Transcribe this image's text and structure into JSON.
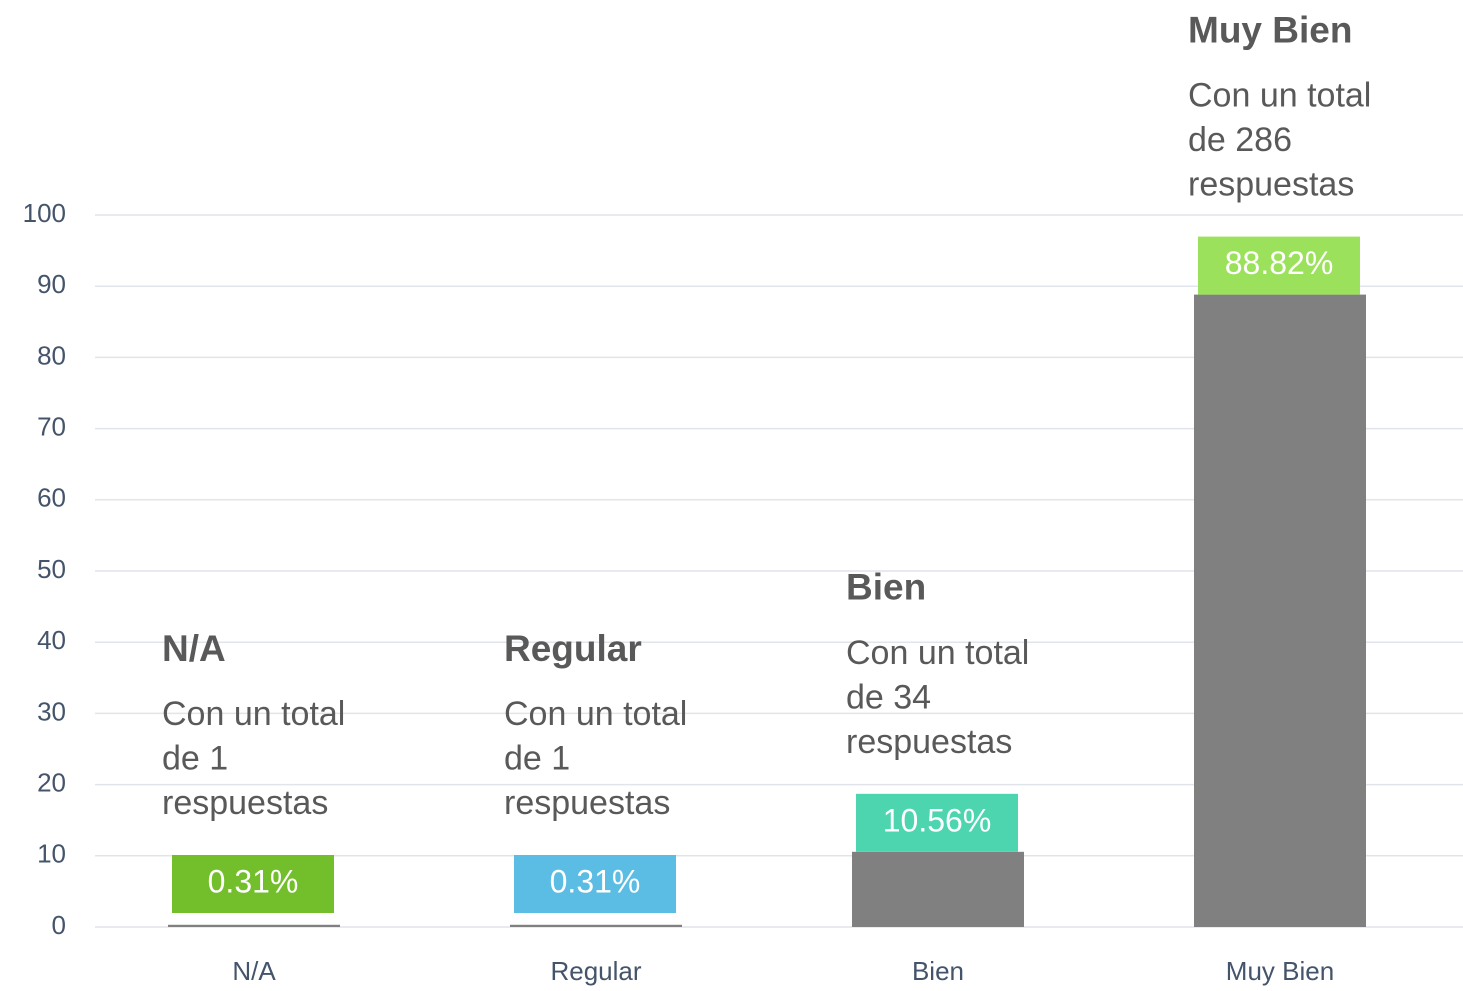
{
  "chart_data": {
    "type": "bar",
    "categories": [
      "N/A",
      "Regular",
      "Bien",
      "Muy Bien"
    ],
    "values": [
      0.31,
      0.31,
      10.56,
      88.82
    ],
    "value_labels": [
      "0.31%",
      "0.31%",
      "10.56%",
      "88.82%"
    ],
    "color": "#808080",
    "label_colors": [
      "#72bf2b",
      "#5bbde3",
      "#4dd5b0",
      "#9ce15b"
    ],
    "annotations": [
      {
        "title": "N/A",
        "lines": [
          "Con un total",
          "de 1",
          "respuestas"
        ]
      },
      {
        "title": "Regular",
        "lines": [
          "Con un total",
          "de 1",
          "respuestas"
        ]
      },
      {
        "title": "Bien",
        "lines": [
          "Con un total",
          "de 34",
          "respuestas"
        ]
      },
      {
        "title": "Muy Bien",
        "lines": [
          "Con un total",
          "de 286",
          "respuestas"
        ]
      }
    ],
    "ylim": [
      0,
      100
    ],
    "yticks": [
      0,
      10,
      20,
      30,
      40,
      50,
      60,
      70,
      80,
      90,
      100
    ],
    "grid": true
  }
}
